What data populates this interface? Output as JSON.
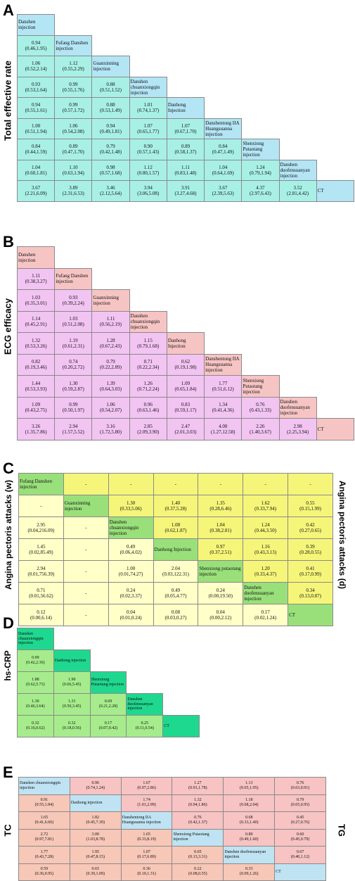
{
  "panels": [
    {
      "id": "A",
      "letter": "A",
      "side_left": "Total effective rate",
      "side_right": "",
      "layout": "lower",
      "size": 9,
      "colors": {
        "diag": "#b3e5f5",
        "cell": "#a8f0e6",
        "empty": ""
      },
      "diag": [
        "Danshen injection",
        "Fufang Danshen injection",
        "Guanxinning injection",
        "Danshen chuanxiongqin injection",
        "Danhong Injection",
        "Danshentong IIA Huangsuanna injection",
        "Shenxiong Putaotang injection",
        "Danshen duofensuanyan injection",
        "CT"
      ],
      "rows": [
        [],
        [
          [
            "0.94",
            "(0.46,1.95)"
          ]
        ],
        [
          [
            "1.06",
            "(0.52,2.14)"
          ],
          [
            "1.12",
            "(0.55,2.29)"
          ]
        ],
        [
          [
            "0.93",
            "(0.53,1.64)"
          ],
          [
            "0.99",
            "(0.55,1.76)"
          ],
          [
            "0.88",
            "(0.51,1.52)"
          ]
        ],
        [
          [
            "0.94",
            "(0.55,1.61)"
          ],
          [
            "0.99",
            "(0.57,1.72)"
          ],
          [
            "0.88",
            "(0.53,1.49)"
          ],
          [
            "1.01",
            "(0.74,1.37)"
          ]
        ],
        [
          [
            "1.00",
            "(0.51,1.94)"
          ],
          [
            "1.06",
            "(0.54,2.08)"
          ],
          [
            "0.94",
            "(0.49,1.81)"
          ],
          [
            "1.07",
            "(0.65,1.77)"
          ],
          [
            "1.07",
            "(0.67,1.70)"
          ]
        ],
        [
          [
            "0.84",
            "(0.44,1.59)"
          ],
          [
            "0.89",
            "(0.47,1.70)"
          ],
          [
            "0.79",
            "(0.42,1.48)"
          ],
          [
            "0.90",
            "(0.57,1.43)"
          ],
          [
            "0.89",
            "(0.58,1.37)"
          ],
          [
            "0.84",
            "(0.47,1.49)"
          ]
        ],
        [
          [
            "1.04",
            "(0.60,1.81)"
          ],
          [
            "1.10",
            "(0.63,1.94)"
          ],
          [
            "0.98",
            "(0.57,1.68)"
          ],
          [
            "1.12",
            "(0.80,1.57)"
          ],
          [
            "1.11",
            "(0.83,1.48)"
          ],
          [
            "1.04",
            "(0.64,1.69)"
          ],
          [
            "1.24",
            "(0.79,1.94)"
          ]
        ],
        [
          [
            "3.67",
            "(2.21,6.09)"
          ],
          [
            "3.89",
            "(2.31,6.53)"
          ],
          [
            "3.46",
            "(2.12,5.64)"
          ],
          [
            "3.94",
            "(3.06,5.08)"
          ],
          [
            "3.91",
            "(3.27,4.68)"
          ],
          [
            "3.67",
            "(2.39,5.63)"
          ],
          [
            "4.37",
            "(2.97,6.43)"
          ],
          [
            "3.52",
            "(2.81,4.42)"
          ]
        ]
      ]
    },
    {
      "id": "B",
      "letter": "B",
      "side_left": "ECG efficacy",
      "side_right": "",
      "layout": "lower",
      "size": 9,
      "colors": {
        "diag": "#f7c4c4",
        "cell": "#f2c4f2",
        "empty": ""
      },
      "diag": [
        "Danshen injection",
        "Fufang Danshen injection",
        "Guanxinning injection",
        "Danshen chuanxiongqin injection",
        "Danhong Injection",
        "Danshentong IIA Huangsuanna injection",
        "Shenxiong Putaotang injection",
        "Danshen duofensuanyan injection",
        "CT"
      ],
      "rows": [
        [],
        [
          [
            "1.11",
            "(0.38,3.27)"
          ]
        ],
        [
          [
            "1.03",
            "(0.35,3.01)"
          ],
          [
            "0.93",
            "(0.39,2.24)"
          ]
        ],
        [
          [
            "1.14",
            "(0.45,2.91)"
          ],
          [
            "1.03",
            "(0.51,2.08)"
          ],
          [
            "1.11",
            "(0.56,2.19)"
          ]
        ],
        [
          [
            "1.32",
            "(0.53,3.26)"
          ],
          [
            "1.19",
            "(0.61,2.31)"
          ],
          [
            "1.28",
            "(0.67,2.43)"
          ],
          [
            "1.15",
            "(0.79,1.68)"
          ]
        ],
        [
          [
            "0.82",
            "(0.19,3.46)"
          ],
          [
            "0.74",
            "(0.20,2.72)"
          ],
          [
            "0.79",
            "(0.22,2.89)"
          ],
          [
            "0.71",
            "(0.22,2.34)"
          ],
          [
            "0.62",
            "(0.19,1.98)"
          ]
        ],
        [
          [
            "1.44",
            "(0.53,3.93)"
          ],
          [
            "1.30",
            "(0.59,2.87)"
          ],
          [
            "1.39",
            "(0.64,3.03)"
          ],
          [
            "1.26",
            "(0.71,2.24)"
          ],
          [
            "1.09",
            "(0.65,1.84)"
          ],
          [
            "1.77",
            "(0.51,6.12)"
          ]
        ],
        [
          [
            "1.09",
            "(0.43,2.75)"
          ],
          [
            "0.99",
            "(0.50,1.97)"
          ],
          [
            "1.06",
            "(0.54,2.07)"
          ],
          [
            "0.96",
            "(0.63,1.46)"
          ],
          [
            "0.83",
            "(0.59,1.17)"
          ],
          [
            "1.34",
            "(0.41,4.36)"
          ],
          [
            "0.76",
            "(0.43,1.33)"
          ]
        ],
        [
          [
            "3.26",
            "(1.35,7.86)"
          ],
          [
            "2.94",
            "(1.57,5.52)"
          ],
          [
            "3.16",
            "(1.72,5.80)"
          ],
          [
            "2.85",
            "(2.09,3.90)"
          ],
          [
            "2.47",
            "(2.01,3.03)"
          ],
          [
            "4.00",
            "(1.27,12.58)"
          ],
          [
            "2.26",
            "(1.40,3.67)"
          ],
          [
            "2.98",
            "(2.25,3.94)"
          ]
        ]
      ]
    },
    {
      "id": "C",
      "letter": "C",
      "side_left": "Angina pectoris attacks (w)",
      "side_right": "Angina pectoris attacks (d)",
      "layout": "full",
      "size": 7,
      "colors": {
        "diag": "#99e07a",
        "cell": "#f5f57a",
        "lower": "#ffffc8"
      },
      "diag": [
        "Fufang Danshen injection",
        "Guanxinning injection",
        "Danshen chuanxiongqin injection",
        "Danhong Injection",
        "Shenxiong putaotang injection",
        "Danshen duofensuanyan injection",
        "CT"
      ],
      "upper": [
        [
          [
            "-"
          ],
          [
            "-"
          ],
          [
            "-"
          ],
          [
            "-"
          ],
          [
            "-"
          ],
          [
            "-"
          ]
        ],
        [
          [
            "1.30",
            "(0.33,5.06)"
          ],
          [
            "1.40",
            "(0.37,5.28)"
          ],
          [
            "1.35",
            "(0.28,6.46)"
          ],
          [
            "1.62",
            "(0.33,7.94)"
          ],
          [
            "0.55",
            "(0.15,1.99)"
          ]
        ],
        [
          [
            "1.08",
            "(0.62,1.87)"
          ],
          [
            "1.04",
            "(0.38,2.81)"
          ],
          [
            "1.24",
            "(0.44,3.50)"
          ],
          [
            "0.42",
            "(0.27,0.65)"
          ]
        ],
        [
          [
            "0.97",
            "(0.37,2.51)"
          ],
          [
            "1.16",
            "(0.43,3.13)"
          ],
          [
            "0.39",
            "(0.28,0.55)"
          ]
        ],
        [
          [
            "1.20",
            "(0.33,4.37)"
          ],
          [
            "0.41",
            "(0.17,0.99)"
          ]
        ],
        [
          [
            "0.34",
            "(0.13,0.87)"
          ]
        ],
        []
      ],
      "lower": [
        [],
        [
          [
            "-"
          ]
        ],
        [
          [
            "2.95",
            "(0.04,216.09)"
          ],
          [
            "-"
          ]
        ],
        [
          [
            "1.45",
            "(0.02,85.49)"
          ],
          [
            "-"
          ],
          [
            "0.49",
            "(0.06,4.02)"
          ]
        ],
        [
          [
            "2.94",
            "(0.01,756.39)"
          ],
          [
            "-"
          ],
          [
            "1.00",
            "(0.01,74.27)"
          ],
          [
            "2.04",
            "(0.03,122.31)"
          ]
        ],
        [
          [
            "0.71",
            "(0.01,56.62)"
          ],
          [
            "-"
          ],
          [
            "0.24",
            "(0.02,3.37)"
          ],
          [
            "0.49",
            "(0.05,4.77)"
          ],
          [
            "0.24",
            "(0.00,19.50)"
          ]
        ],
        [
          [
            "0.12",
            "(0.00,6.14)"
          ],
          [
            "-"
          ],
          [
            "0.04",
            "(0.01,0.24)"
          ],
          [
            "0.08",
            "(0.03,0.27)"
          ],
          [
            "0.04",
            "(0.00,2.12)"
          ],
          [
            "0.17",
            "(0.02,1.24)"
          ]
        ]
      ]
    },
    {
      "id": "D",
      "letter": "D",
      "side_left": "hs-CRP",
      "side_right": "",
      "layout": "lower",
      "size": 5,
      "colors": {
        "diag": "#1fd88f",
        "cell": "#a6ec8c",
        "empty": ""
      },
      "diag": [
        "Danshen chuanxiongqin injection",
        "Danhong injection",
        "Shenxiong Putaotang injection",
        "Danshen duofensuanyan injection",
        "CT"
      ],
      "rows": [
        [],
        [
          [
            "0.99",
            "(0.42,2.36)"
          ]
        ],
        [
          [
            "1.88",
            "(0.62,5.73)"
          ],
          [
            "1.90",
            "(0.66,5.45)"
          ]
        ],
        [
          [
            "1.30",
            "(0.46,3.64)"
          ],
          [
            "1.31",
            "(0.50,3.45)"
          ],
          [
            "0.69",
            "(0.21,2.28)"
          ]
        ],
        [
          [
            "0.32",
            "(0.16,0.62)"
          ],
          [
            "0.32",
            "(0.18,0.56)"
          ],
          [
            "0.17",
            "(0.07,0.42)"
          ],
          [
            "0.25",
            "(0.11,0.54)"
          ]
        ]
      ]
    },
    {
      "id": "E",
      "letter": "E",
      "side_left": "TC",
      "side_right": "TG",
      "layout": "full",
      "size": 6,
      "colors": {
        "diag": "#bfe3f2",
        "cell": "#f7c3c3",
        "lower": "#f7c7b8"
      },
      "diag": [
        "Danshen chuanxiongqin injection",
        "Danhong injection",
        "Danshentong IIA Huangsuanna injection",
        "Shenxiong Putaotang injection",
        "Danshen duofensuanyan injection",
        "CT"
      ],
      "upper": [
        [
          [
            "0.96",
            "(0.74,1.24)"
          ],
          [
            "1.67",
            "(0.97,2.86)"
          ],
          [
            "1.27",
            "(0.91,1.78)"
          ],
          [
            "1.13",
            "(0.65,1.95)"
          ],
          [
            "0.76",
            "(0.63,0.91)"
          ]
        ],
        [
          [
            "1.74",
            "(1.01,2.99)"
          ],
          [
            "1.32",
            "(0.94,1.86)"
          ],
          [
            "1.18",
            "(0.68,2.04)"
          ],
          [
            "0.79",
            "(0.65,0.95)"
          ]
        ],
        [
          [
            "0.76",
            "(0.42,1.37)"
          ],
          [
            "0.68",
            "(0.33,1.40)"
          ],
          [
            "0.45",
            "(0.27,0.76)"
          ]
        ],
        [
          [
            "0.89",
            "(0.49,1.60)"
          ],
          [
            "0.60",
            "(0.45,0.79)"
          ]
        ],
        [
          [
            "0.67",
            "(0.40,1.12)"
          ]
        ],
        []
      ],
      "lower": [
        [],
        [
          [
            "0.91",
            "(0.55,1.84)"
          ]
        ],
        [
          [
            "1.65",
            "(0.41,6.60)"
          ],
          [
            "1.82",
            "(0.45,7.39)"
          ]
        ],
        [
          [
            "2.72",
            "(0.97,7.81)"
          ],
          [
            "3.00",
            "(1.03,8.78)"
          ],
          [
            "1.65",
            "(0.33,8.19)"
          ]
        ],
        [
          [
            "1.77",
            "(0.43,7.28)"
          ],
          [
            "1.95",
            "(0.47,8.15)"
          ],
          [
            "1.07",
            "(0.17,6.89)"
          ],
          [
            "0.65",
            "(0.13,3.31)"
          ]
        ],
        [
          [
            "0.59",
            "(0.36,0.95)"
          ],
          [
            "0.65",
            "(0.39,1.09)"
          ],
          [
            "0.36",
            "(0.10,1.31)"
          ],
          [
            "0.22",
            "(0.08,0.55)"
          ],
          [
            "0.33",
            "(0.09,1.26)"
          ]
        ]
      ]
    }
  ]
}
